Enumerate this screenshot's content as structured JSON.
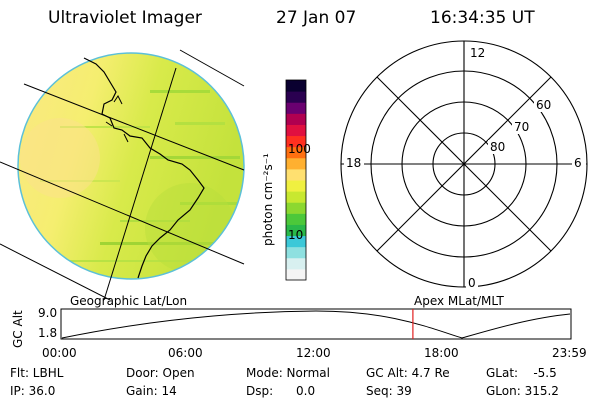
{
  "header": {
    "instrument": "Ultraviolet Imager",
    "date": "27 Jan 07",
    "time": "16:34:35 UT"
  },
  "colorbar": {
    "label": "photon cm⁻²s⁻¹",
    "tick_high": "100",
    "tick_low": "10",
    "colors": [
      "#f5f5f5",
      "#d8f0f0",
      "#8ee0e0",
      "#3cc8d8",
      "#2ab84a",
      "#4cc83a",
      "#8cd830",
      "#c8e830",
      "#f0f040",
      "#ffe070",
      "#ffb030",
      "#ff7010",
      "#ff3020",
      "#e01040",
      "#b00050",
      "#6a0070",
      "#2a0050",
      "#0a0030"
    ]
  },
  "polar_plot": {
    "mlt_labels": {
      "top": "12",
      "bottom": "0",
      "left": "18",
      "right": "6"
    },
    "lat_labels": [
      "60",
      "70",
      "80"
    ]
  },
  "timeline": {
    "axis_label": "GC Alt",
    "ymax": "9.0",
    "ymin": "1.8",
    "left_caption": "Geographic Lat/Lon",
    "right_caption": "Apex MLat/MLT",
    "x_ticks": [
      "00:00",
      "06:00",
      "12:00",
      "18:00",
      "23:59"
    ],
    "current_fraction": 0.69
  },
  "info": {
    "filter": "Flt: LBHL",
    "ip": "IP: 36.0",
    "door": "Door: Open",
    "gain": "Gain: 14",
    "mode": "Mode: Normal",
    "dsp": "Dsp:      0.0",
    "gc_alt": "GC Alt: 4.7 Re",
    "seq": "Seq: 39",
    "glat": "GLat:    -5.5",
    "glon": "GLon: 315.2"
  }
}
